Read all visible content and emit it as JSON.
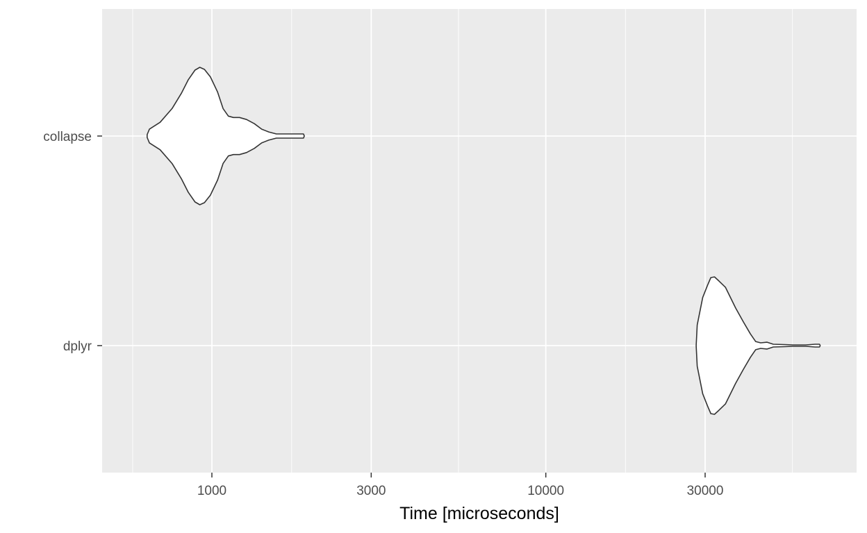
{
  "chart_data": {
    "type": "violin",
    "title": "",
    "xlabel": "Time [microseconds]",
    "ylabel": "",
    "x_scale": "log10",
    "xlim": [
      530,
      73000
    ],
    "x_major_ticks": [
      1000,
      3000,
      10000,
      30000
    ],
    "x_tick_labels": [
      "1000",
      "3000",
      "10000",
      "30000"
    ],
    "x_minor_ticks": [
      1733,
      5477,
      17321,
      54772
    ],
    "categories": [
      "dplyr",
      "collapse"
    ],
    "grid": true,
    "panel_background": "#ebebeb",
    "grid_color": "#ffffff",
    "violin_fill": "#ffffff",
    "violin_outline": "#333333",
    "series": [
      {
        "category": "collapse",
        "density_profile": [
          [
            640,
            0.02
          ],
          [
            650,
            0.1
          ],
          [
            700,
            0.2
          ],
          [
            760,
            0.4
          ],
          [
            810,
            0.62
          ],
          [
            850,
            0.82
          ],
          [
            890,
            0.96
          ],
          [
            920,
            1.0
          ],
          [
            950,
            0.97
          ],
          [
            990,
            0.86
          ],
          [
            1040,
            0.64
          ],
          [
            1080,
            0.4
          ],
          [
            1120,
            0.29
          ],
          [
            1160,
            0.27
          ],
          [
            1210,
            0.27
          ],
          [
            1270,
            0.24
          ],
          [
            1340,
            0.18
          ],
          [
            1410,
            0.1
          ],
          [
            1480,
            0.06
          ],
          [
            1560,
            0.03
          ],
          [
            1880,
            0.03
          ],
          [
            1890,
            0.005
          ]
        ]
      },
      {
        "category": "dplyr",
        "density_profile": [
          [
            28200,
            0.0
          ],
          [
            28400,
            0.3
          ],
          [
            29500,
            0.7
          ],
          [
            30500,
            0.88
          ],
          [
            31200,
            0.99
          ],
          [
            32000,
            1.0
          ],
          [
            33000,
            0.94
          ],
          [
            34500,
            0.85
          ],
          [
            37000,
            0.55
          ],
          [
            39000,
            0.35
          ],
          [
            41000,
            0.17
          ],
          [
            42500,
            0.06
          ],
          [
            44000,
            0.04
          ],
          [
            46000,
            0.05
          ],
          [
            48000,
            0.02
          ],
          [
            52000,
            0.015
          ],
          [
            55000,
            0.01
          ],
          [
            60000,
            0.01
          ],
          [
            64000,
            0.02
          ],
          [
            66000,
            0.02
          ],
          [
            66300,
            0.005
          ]
        ]
      }
    ]
  }
}
